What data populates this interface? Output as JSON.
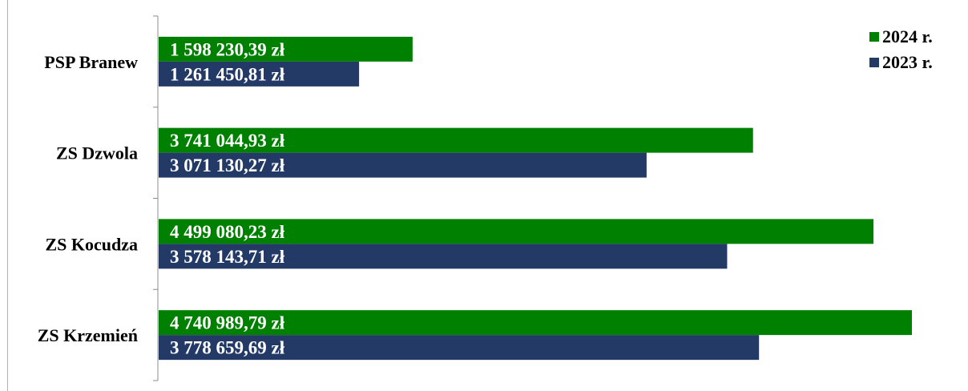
{
  "chart_data": {
    "type": "bar",
    "orientation": "horizontal",
    "categories": [
      "PSP Branew",
      "ZS Dzwola",
      "ZS Kocudza",
      "ZS Krzemień"
    ],
    "series": [
      {
        "name": "2024 r.",
        "color": "#008000",
        "values": [
          1598230.39,
          3741044.93,
          4499080.23,
          4740989.79
        ],
        "labels": [
          "1 598 230,39 zł",
          "3 741 044,93 zł",
          "4 499 080,23 zł",
          "4 740 989,79 zł"
        ]
      },
      {
        "name": "2023 r.",
        "color": "#243a66",
        "values": [
          1261450.81,
          3071130.27,
          3578143.71,
          3778659.69
        ],
        "labels": [
          "1 261 450,81 zł",
          "3 071 130,27 zł",
          "3 578 143,71 zł",
          "3 778 659,69 zł"
        ]
      }
    ],
    "xlim": [
      0,
      5000000
    ],
    "grid": false,
    "legend_position": "top-right"
  }
}
